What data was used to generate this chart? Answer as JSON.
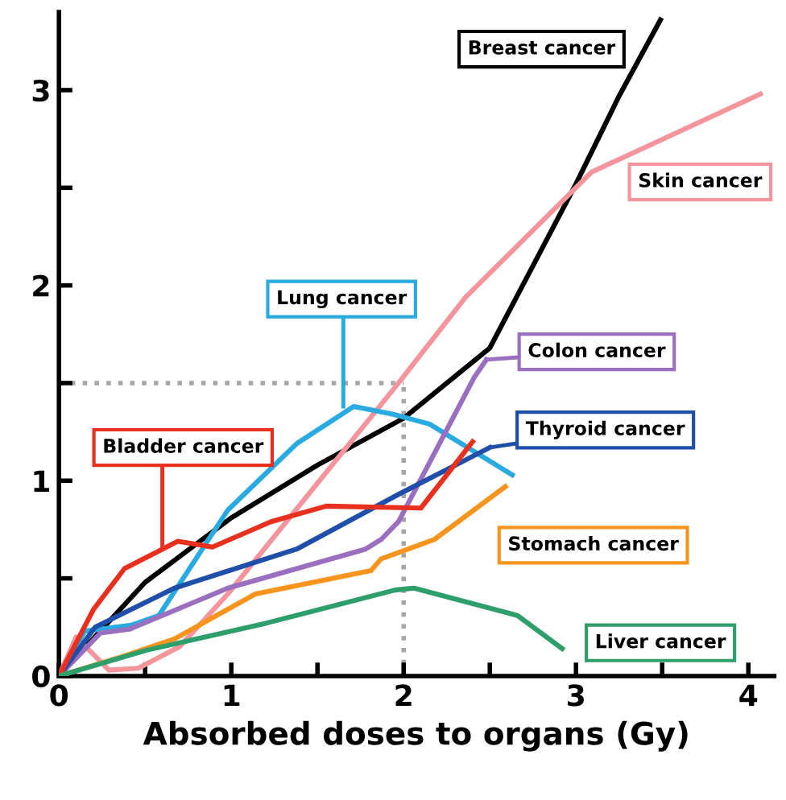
{
  "chart_data": {
    "type": "line",
    "xlabel": "Absorbed doses to organs (Gy)",
    "xlim": [
      0,
      4.15
    ],
    "ylim": [
      0,
      3.4
    ],
    "xticks": [
      0,
      {
        "value": 0.5,
        "label": null
      },
      1,
      {
        "value": 1.5,
        "label": null
      },
      2,
      {
        "value": 2.5,
        "label": null
      },
      3,
      {
        "value": 3.5,
        "label": null
      },
      4
    ],
    "yticks": [
      0,
      {
        "value": 0.5,
        "label": null
      },
      1,
      {
        "value": 1.5,
        "label": null
      },
      2,
      {
        "value": 2.5,
        "label": null
      },
      3
    ],
    "grid": false,
    "legend": false,
    "marker": "none",
    "line_style": "solid",
    "ref_lines": [
      {
        "axis": "y",
        "value": 1.5,
        "color": "#a6a6a6",
        "line_style": "dotted"
      },
      {
        "axis": "x",
        "value": 2,
        "color": "#a6a6a6",
        "line_style": "dotted"
      }
    ],
    "series": [
      {
        "name": "Breast cancer",
        "color": "#000000",
        "x": [
          0,
          0.5,
          1,
          1.5,
          2,
          2.5,
          2.75,
          3,
          3.25,
          3.49
        ],
        "values": [
          0,
          0.48,
          0.81,
          1.08,
          1.32,
          1.68,
          2.1,
          2.52,
          2.97,
          3.36
        ]
      },
      {
        "name": "Skin cancer",
        "color": "#f4949c",
        "x": [
          0,
          0.1,
          0.29,
          0.46,
          0.7,
          0.98,
          1.97,
          2.36,
          3.09,
          4.07
        ],
        "values": [
          0,
          0.2,
          0.03,
          0.04,
          0.15,
          0.42,
          1.5,
          1.94,
          2.58,
          2.98
        ]
      },
      {
        "name": "Lung cancer",
        "color": "#29abe2",
        "x": [
          0,
          0.15,
          0.42,
          0.58,
          0.98,
          1.38,
          1.71,
          1.94,
          2.15,
          2.63
        ],
        "values": [
          0,
          0.23,
          0.26,
          0.31,
          0.85,
          1.19,
          1.38,
          1.34,
          1.29,
          1.03
        ]
      },
      {
        "name": "Colon cancer",
        "color": "#9b6fc0",
        "x": [
          0,
          0.24,
          0.41,
          0.98,
          1.78,
          1.87,
          1.97,
          2.41,
          2.48
        ],
        "values": [
          0,
          0.22,
          0.24,
          0.45,
          0.65,
          0.7,
          0.79,
          1.53,
          1.62
        ]
      },
      {
        "name": "Thyroid cancer",
        "color": "#1f4fa8",
        "x": [
          0,
          0.21,
          0.67,
          1.38,
          1.97,
          2.5
        ],
        "values": [
          0,
          0.25,
          0.45,
          0.65,
          0.93,
          1.17
        ]
      },
      {
        "name": "Bladder cancer",
        "color": "#e8301e",
        "x": [
          0,
          0.2,
          0.38,
          0.69,
          0.89,
          1.23,
          1.55,
          2.1,
          2.4
        ],
        "values": [
          0,
          0.34,
          0.55,
          0.69,
          0.66,
          0.79,
          0.87,
          0.86,
          1.2
        ]
      },
      {
        "name": "Stomach cancer",
        "color": "#f7941d",
        "x": [
          0,
          0.37,
          0.67,
          1.14,
          1.81,
          1.87,
          2.18,
          2.59
        ],
        "values": [
          0,
          0.1,
          0.19,
          0.42,
          0.54,
          0.6,
          0.7,
          0.97
        ]
      },
      {
        "name": "Liver cancer",
        "color": "#2e9e6b",
        "x": [
          0,
          0.5,
          1.2,
          1.95,
          2.06,
          2.66,
          2.92
        ],
        "values": [
          0,
          0.13,
          0.27,
          0.44,
          0.45,
          0.31,
          0.14
        ]
      }
    ]
  }
}
